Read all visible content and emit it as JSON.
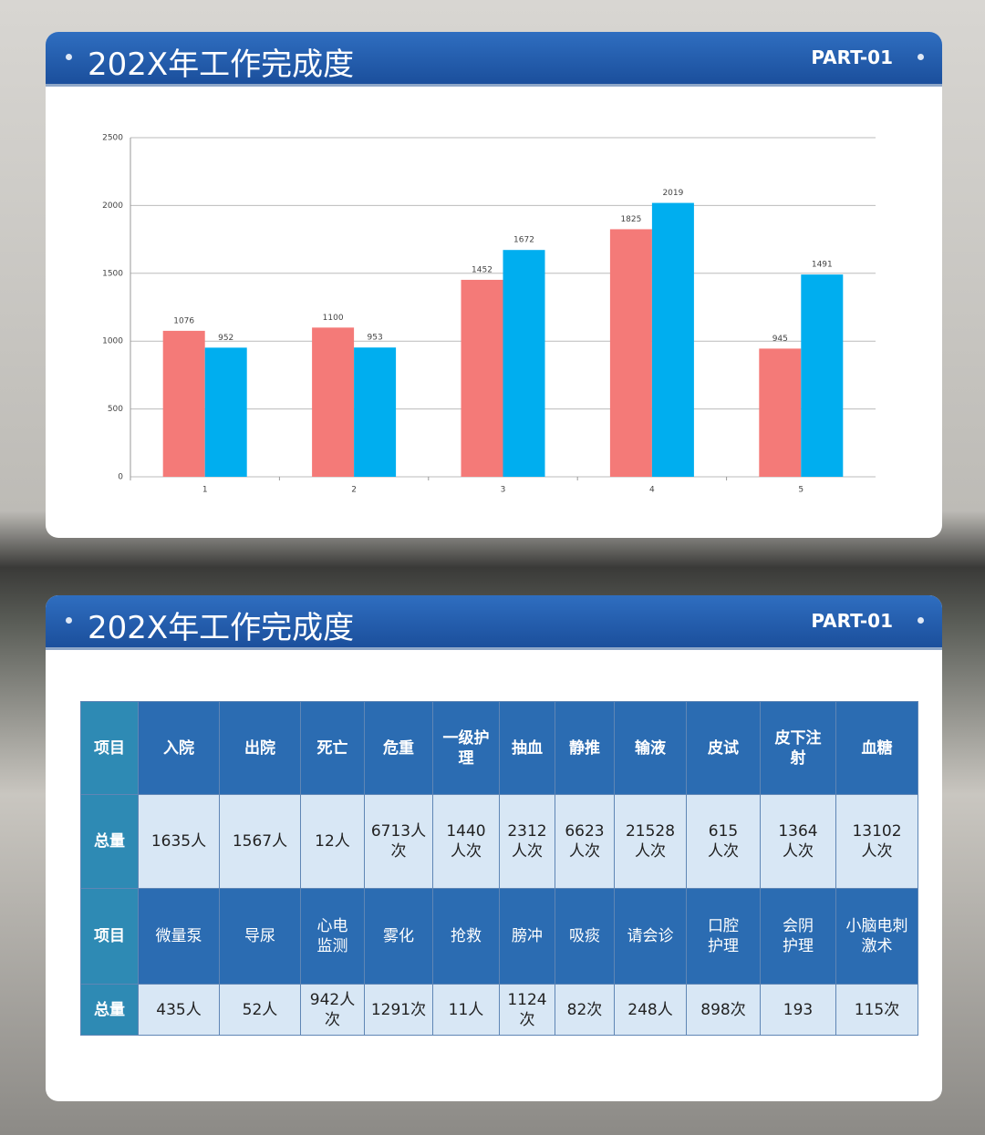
{
  "headers": [
    {
      "title": "202X年工作完成度",
      "label": "PART-01"
    },
    {
      "title": "202X年工作完成度",
      "label": "PART-01"
    }
  ],
  "chart_data": {
    "type": "bar",
    "categories": [
      "1",
      "2",
      "3",
      "4",
      "5"
    ],
    "series": [
      {
        "color": "#f47a78",
        "values": [
          1076,
          1100,
          1452,
          1825,
          945
        ]
      },
      {
        "color": "#00aeef",
        "values": [
          952,
          953,
          1672,
          2019,
          1491
        ]
      }
    ],
    "ylim": [
      0,
      2500
    ],
    "yticks": [
      0,
      500,
      1000,
      1500,
      2000,
      2500
    ],
    "grid": true
  },
  "table": {
    "rows": [
      [
        "项目",
        "入院",
        "出院",
        "死亡",
        "危重",
        "一级护\n理",
        "抽血",
        "静推",
        "输液",
        "皮试",
        "皮下注\n射",
        "血糖"
      ],
      [
        "总量",
        "1635人",
        "1567人",
        "12人",
        "6713人\n次",
        "1440\n人次",
        "2312\n人次",
        "6623\n人次",
        "21528\n人次",
        "615\n人次",
        "1364\n人次",
        "13102\n人次"
      ],
      [
        "项目",
        "微量泵",
        "导尿",
        "心电\n监测",
        "雾化",
        "抢救",
        "膀冲",
        "吸痰",
        "请会诊",
        "口腔\n护理",
        "会阴\n护理",
        "小脑电刺\n激术"
      ],
      [
        "总量",
        "435人",
        "52人",
        "942人\n次",
        "1291次",
        "11人",
        "1124\n次",
        "82次",
        "248人",
        "898次",
        "193",
        "115次"
      ]
    ]
  }
}
